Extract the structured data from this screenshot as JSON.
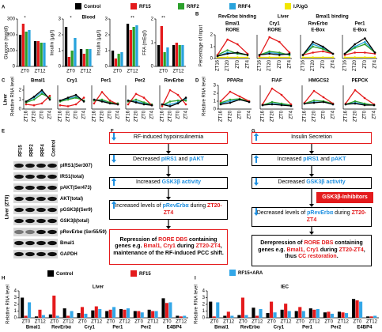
{
  "legend": [
    {
      "name": "Control",
      "color": "#000000"
    },
    {
      "name": "RF15",
      "color": "#e41a1c"
    },
    {
      "name": "RRF2",
      "color": "#2ca02c"
    },
    {
      "name": "RRF4",
      "color": "#29a3dc"
    },
    {
      "name": "I.P.IgG",
      "color": "#f2e600"
    }
  ],
  "panel_a": {
    "letter": "A",
    "tissue": "Blood",
    "categories": [
      "ZT0",
      "ZT12"
    ],
    "charts": [
      {
        "ylabel": "Glucose (mg/dl)",
        "ylim": [
          0,
          300
        ],
        "yticks": [
          0,
          100,
          200,
          300
        ],
        "annotation": "*",
        "values": [
          [
            200,
            160
          ],
          [
            270,
            160
          ],
          [
            220,
            150
          ],
          [
            230,
            150
          ]
        ]
      },
      {
        "ylabel": "Insulin (µg/l)",
        "ylim": [
          0,
          3
        ],
        "yticks": [
          0,
          1,
          2,
          3
        ],
        "annotation": "*",
        "values": [
          [
            2.5,
            1.1
          ],
          [
            0.6,
            0.8
          ],
          [
            1.0,
            1.1
          ],
          [
            1.8,
            1.1
          ]
        ]
      },
      {
        "ylabel": "Insulin (µg/l)",
        "ylim": [
          0,
          3
        ],
        "yticks": [
          0,
          1,
          2,
          3
        ],
        "annotation": "**",
        "values": [
          [
            1.0,
            2.7
          ],
          [
            0.5,
            2.3
          ],
          [
            0.8,
            2.5
          ],
          [
            0.9,
            2.6
          ]
        ]
      },
      {
        "ylabel": "FFA (mEq/l)",
        "ylim": [
          0,
          2
        ],
        "yticks": [
          0,
          1,
          2
        ],
        "annotation": "**",
        "values": [
          [
            0.9,
            0.9
          ],
          [
            1.7,
            1.0
          ],
          [
            0.6,
            0.9
          ],
          [
            0.8,
            0.9
          ]
        ]
      }
    ]
  },
  "panel_b": {
    "letter": "B",
    "ylabel": "Percentage of Input",
    "headers": [
      "RevErbα binding",
      "Liver",
      "Bmal1 binding"
    ],
    "categories": [
      "ZT16",
      "ZT20",
      "ZT0",
      "ZT4"
    ],
    "charts": [
      {
        "title": "Bmal1",
        "subtitle": "RORE",
        "ylim": [
          0,
          2
        ],
        "yticks": [
          0,
          1,
          2
        ],
        "values": [
          [
            0.2,
            0.4,
            0.5,
            0.3
          ],
          [
            0.3,
            1.6,
            1.2,
            0.4
          ],
          [
            0.3,
            0.7,
            0.4,
            0.3
          ],
          [
            0.2,
            0.5,
            0.4,
            0.3
          ],
          [
            0.1,
            0.1,
            0.1,
            0.1
          ]
        ]
      },
      {
        "title": "Cry1",
        "subtitle": "RORE",
        "ylim": [
          0,
          2
        ],
        "values": [
          [
            0.3,
            0.4,
            0.3,
            0.4
          ],
          [
            0.2,
            1.8,
            1.4,
            0.5
          ],
          [
            0.3,
            0.6,
            0.5,
            0.3
          ],
          [
            0.3,
            0.5,
            0.4,
            0.3
          ],
          [
            0.1,
            0.1,
            0.1,
            0.1
          ]
        ]
      },
      {
        "title": "RevErbα",
        "subtitle": "E-Box",
        "ylim": [
          0,
          2
        ],
        "values": [
          [
            0.3,
            1.4,
            1.0,
            0.4
          ],
          [
            0.3,
            0.5,
            0.6,
            0.4
          ],
          [
            0.3,
            1.0,
            0.8,
            0.4
          ],
          [
            0.3,
            1.2,
            0.9,
            0.4
          ],
          [
            0.1,
            0.1,
            0.1,
            0.1
          ]
        ]
      },
      {
        "title": "Per1",
        "subtitle": "E-Box",
        "ylim": [
          0,
          2
        ],
        "values": [
          [
            0.4,
            1.2,
            1.7,
            0.5
          ],
          [
            0.3,
            0.5,
            0.5,
            0.4
          ],
          [
            0.4,
            0.9,
            1.2,
            0.5
          ],
          [
            0.4,
            1.0,
            1.4,
            0.5
          ],
          [
            0.1,
            0.1,
            0.1,
            0.1
          ]
        ]
      }
    ]
  },
  "panel_c": {
    "letter": "C",
    "tissue": "Liver",
    "ylabel": "Relative RNA level",
    "categories": [
      "ZT16",
      "ZT20",
      "ZT0",
      "ZT4"
    ],
    "charts": [
      {
        "title": "Bmal1",
        "ylim": [
          0,
          2.5
        ],
        "yticks": [
          0,
          1,
          2
        ],
        "values": [
          [
            0.8,
            1.3,
            2.0,
            1.0
          ],
          [
            0.5,
            0.4,
            0.6,
            1.4
          ],
          [
            0.7,
            1.0,
            1.6,
            1.2
          ],
          [
            0.8,
            1.2,
            1.8,
            1.1
          ]
        ]
      },
      {
        "title": "Cry1",
        "ylim": [
          0,
          2.5
        ],
        "values": [
          [
            0.9,
            1.2,
            1.5,
            0.8
          ],
          [
            0.4,
            0.3,
            0.5,
            1.2
          ],
          [
            0.8,
            1.0,
            1.2,
            0.9
          ],
          [
            0.9,
            1.1,
            1.3,
            0.9
          ]
        ]
      },
      {
        "title": "Per1",
        "ylim": [
          0,
          2.5
        ],
        "values": [
          [
            1.0,
            0.8,
            0.6,
            0.5
          ],
          [
            0.6,
            1.8,
            0.9,
            0.5
          ],
          [
            0.9,
            1.0,
            0.7,
            0.6
          ],
          [
            1.0,
            0.9,
            0.6,
            0.5
          ]
        ]
      },
      {
        "title": "Per2",
        "ylim": [
          0,
          2.5
        ],
        "values": [
          [
            0.9,
            0.7,
            0.5,
            0.4
          ],
          [
            0.5,
            1.6,
            1.2,
            0.4
          ],
          [
            0.8,
            1.0,
            0.7,
            0.5
          ],
          [
            0.9,
            0.8,
            0.6,
            0.4
          ]
        ]
      },
      {
        "title": "RevErbα",
        "ylim": [
          0,
          2.5
        ],
        "values": [
          [
            0.5,
            0.3,
            0.6,
            1.2
          ],
          [
            0.3,
            2.0,
            1.5,
            0.5
          ],
          [
            0.4,
            0.8,
            0.9,
            0.9
          ],
          [
            0.5,
            0.5,
            0.7,
            1.1
          ]
        ]
      }
    ]
  },
  "panel_d": {
    "letter": "D",
    "ylabel": "Relative RNA level",
    "categories": [
      "ZT16",
      "ZT20",
      "ZT0",
      "ZT4"
    ],
    "charts": [
      {
        "title": "PPARα",
        "ylim": [
          0,
          3
        ],
        "yticks": [
          0,
          1,
          2,
          3
        ],
        "values": [
          [
            0.6,
            0.8,
            1.2,
            0.9
          ],
          [
            1.0,
            2.2,
            1.6,
            1.0
          ],
          [
            0.8,
            1.2,
            1.3,
            1.0
          ],
          [
            0.7,
            1.0,
            1.2,
            0.9
          ]
        ]
      },
      {
        "title": "FIAF",
        "ylim": [
          0,
          3
        ],
        "values": [
          [
            0.5,
            0.6,
            0.5,
            0.4
          ],
          [
            0.6,
            2.6,
            1.8,
            0.6
          ],
          [
            0.5,
            0.9,
            0.7,
            0.5
          ],
          [
            0.5,
            0.7,
            0.6,
            0.4
          ]
        ]
      },
      {
        "title": "HMGCS2",
        "ylim": [
          0,
          3
        ],
        "values": [
          [
            0.7,
            0.8,
            0.9,
            0.6
          ],
          [
            0.8,
            2.3,
            1.5,
            0.7
          ],
          [
            0.7,
            1.1,
            1.0,
            0.7
          ],
          [
            0.7,
            0.9,
            0.9,
            0.6
          ]
        ]
      },
      {
        "title": "PEPCK",
        "ylim": [
          0,
          3
        ],
        "values": [
          [
            0.6,
            0.7,
            0.5,
            0.5
          ],
          [
            0.7,
            2.4,
            1.4,
            0.6
          ],
          [
            0.6,
            1.0,
            0.7,
            0.5
          ],
          [
            0.6,
            0.8,
            0.6,
            0.5
          ]
        ]
      }
    ]
  },
  "panel_e": {
    "letter": "E",
    "side_label": "Liver (ZT0)",
    "columns": [
      "RF15",
      "RRF2",
      "RRF4",
      "Control"
    ],
    "rows": [
      "pIRS1(Ser307)",
      "IRS1(total)",
      "pAKT(Ser473)",
      "AKT(total)",
      "pGSK3β(Ser9)",
      "GSK3β(total)",
      "pRevErbα (Ser55/59)",
      "Bmal1",
      "GAPDH"
    ]
  },
  "panel_f": {
    "letter": "F",
    "boxes": [
      [
        {
          "text": "RF-induced hypoinsulinemia"
        }
      ],
      [
        {
          "text": "Decreased "
        },
        {
          "text": "pIRS1",
          "color": "#1e8fe0"
        },
        {
          "text": " and "
        },
        {
          "text": "pAKT",
          "color": "#1e8fe0"
        }
      ],
      [
        {
          "text": "Increased "
        },
        {
          "text": "GSK3β activity",
          "color": "#1e8fe0"
        }
      ],
      [
        {
          "text": "Increased levels of "
        },
        {
          "text": "pRevErbα",
          "color": "#1e8fe0"
        },
        {
          "text": " during "
        },
        {
          "text": "ZT20-ZT4",
          "color": "#e41a1c"
        }
      ],
      [
        {
          "text": "Repression of "
        },
        {
          "text": "RORE DBS",
          "color": "#e41a1c"
        },
        {
          "text": " containing genes e.g. "
        },
        {
          "text": "Bmal1, Cry1",
          "color": "#e41a1c"
        },
        {
          "text": " during "
        },
        {
          "text": "ZT20-ZT4",
          "color": "#e41a1c"
        },
        {
          "text": ", maintenance of the RF-induced PCC shift."
        }
      ]
    ]
  },
  "panel_g": {
    "letter": "G",
    "boxes": [
      [
        {
          "text": "Insulin Secretion"
        }
      ],
      [
        {
          "text": "Increased "
        },
        {
          "text": "pIRS1",
          "color": "#1e8fe0"
        },
        {
          "text": " and "
        },
        {
          "text": "pAKT",
          "color": "#1e8fe0"
        }
      ],
      [
        {
          "text": "Decreased "
        },
        {
          "text": "GSK3β activity",
          "color": "#1e8fe0"
        }
      ],
      [
        {
          "text": "Decreased levels of "
        },
        {
          "text": "pRevErbα",
          "color": "#1e8fe0"
        },
        {
          "text": " during "
        },
        {
          "text": "ZT20-ZT4",
          "color": "#e41a1c"
        }
      ],
      [
        {
          "text": "Derepression of "
        },
        {
          "text": "RORE DBS",
          "color": "#e41a1c"
        },
        {
          "text": " containing genes e.g. "
        },
        {
          "text": "Bmal1, Cry1",
          "color": "#e41a1c"
        },
        {
          "text": " during "
        },
        {
          "text": "ZT20-ZT4",
          "color": "#e41a1c"
        },
        {
          "text": ", thus "
        },
        {
          "text": "CC restoration",
          "color": "#e41a1c"
        },
        {
          "text": "."
        }
      ]
    ],
    "inhibitor": "GSK3β-Inhibitors"
  },
  "legend_hi": [
    {
      "name": "Control",
      "color": "#000000"
    },
    {
      "name": "RF15",
      "color": "#e41a1c"
    },
    {
      "name": "RF15+ARA",
      "color": "#33a7e8"
    }
  ],
  "panel_h": {
    "letter": "H",
    "title": "Liver",
    "ylabel": "Relative RNA level",
    "ylim": [
      0,
      4
    ],
    "yticks": [
      0,
      1,
      2,
      3,
      4
    ],
    "genes": [
      "Bmal1",
      "RevErbα",
      "Cry1",
      "Per1",
      "Per2",
      "E4BP4"
    ],
    "times": [
      "ZT0",
      "ZT12"
    ],
    "values": [
      [
        3.0,
        0.2,
        0.5,
        1.4,
        0.7,
        1.1,
        1.0,
        1.3,
        1.0,
        1.2,
        2.9,
        0.3
      ],
      [
        0.3,
        1.2,
        3.3,
        0.3,
        1.6,
        1.7,
        1.2,
        1.2,
        1.0,
        1.0,
        2.2,
        0.2
      ],
      [
        2.3,
        0.4,
        0.3,
        1.0,
        0.6,
        1.3,
        1.6,
        1.4,
        0.8,
        1.0,
        2.3,
        0.3
      ]
    ]
  },
  "panel_i": {
    "letter": "I",
    "title": "IEC",
    "ylabel": "Relative RNA level",
    "ylim": [
      0,
      4
    ],
    "yticks": [
      0,
      1,
      2,
      3,
      4
    ],
    "genes": [
      "Bmal1",
      "RevErbα",
      "Cry1",
      "Per1",
      "Per2",
      "E4BP4"
    ],
    "times": [
      "ZT0",
      "ZT12"
    ],
    "values": [
      [
        2.4,
        0.3,
        0.4,
        1.5,
        0.7,
        1.2,
        1.0,
        1.4,
        0.8,
        0.9,
        2.8,
        0.2
      ],
      [
        0.2,
        0.9,
        3.0,
        0.3,
        2.4,
        2.1,
        1.6,
        1.2,
        0.9,
        0.8,
        2.6,
        0.2
      ],
      [
        2.3,
        0.3,
        0.4,
        1.3,
        0.8,
        1.0,
        1.0,
        1.3,
        0.6,
        0.7,
        2.4,
        0.3
      ]
    ]
  }
}
